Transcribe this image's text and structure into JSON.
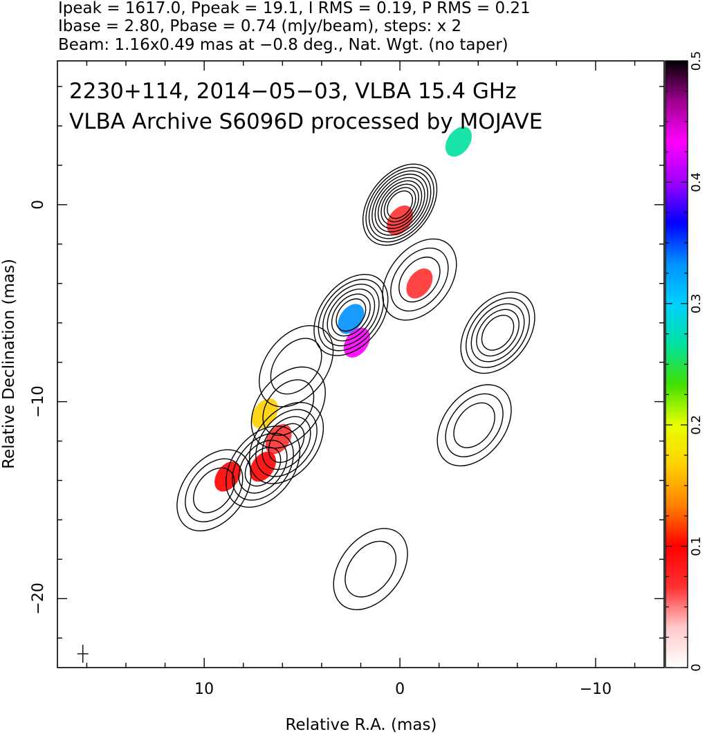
{
  "header": {
    "line1": "Ipeak = 1617.0, Ppeak = 19.1, I RMS = 0.19, P RMS = 0.21",
    "line2": "Ibase = 2.80, Pbase = 0.74 (mJy/beam), steps: x 2",
    "line3": "Beam: 1.16x0.49 mas at −0.8 deg., Nat. Wgt. (no taper)"
  },
  "overlay": {
    "line1": "2230+114, 2014−05−03, VLBA 15.4 GHz",
    "line2": "VLBA Archive S6096D processed by MOJAVE"
  },
  "chart_data": {
    "type": "heatmap",
    "title": "",
    "xlabel": "Relative R.A. (mas)",
    "ylabel": "Relative Declination (mas)",
    "xlim": [
      17.5,
      -13.5
    ],
    "ylim": [
      -23.5,
      7.3
    ],
    "x_ticks": [
      10,
      0,
      -10
    ],
    "x_tick_labels": [
      "10",
      "0",
      "−10"
    ],
    "y_ticks": [
      0,
      -10,
      -20
    ],
    "y_tick_labels": [
      "0",
      "−10",
      "−20"
    ],
    "grid": false,
    "colorbar": {
      "range": [
        0,
        0.5
      ],
      "ticks": [
        0,
        0.1,
        0.2,
        0.3,
        0.4,
        0.5
      ],
      "tick_labels": [
        "0",
        "0.1",
        "0.2",
        "0.3",
        "0.4",
        "0.5"
      ],
      "orientation": "vertical",
      "placement": "right",
      "stops": [
        "#ffffff",
        "#ffc8c8",
        "#ff3030",
        "#ff0000",
        "#ff8000",
        "#ffd000",
        "#e8ff00",
        "#40e000",
        "#00e0a0",
        "#00d0ff",
        "#0090ff",
        "#0000ff",
        "#a000ff",
        "#ff00ff",
        "#a00090",
        "#000000"
      ]
    },
    "contour_sources": [
      {
        "x": 0.0,
        "y": 0.0,
        "levels": 9
      },
      {
        "x": -1.0,
        "y": -3.8,
        "levels": 3
      },
      {
        "x": 2.5,
        "y": -5.6,
        "levels": 6
      },
      {
        "x": 5.3,
        "y": -8.2,
        "levels": 2
      },
      {
        "x": 5.7,
        "y": -10.3,
        "levels": 2
      },
      {
        "x": 5.8,
        "y": -12.1,
        "levels": 4
      },
      {
        "x": 7.0,
        "y": -13.3,
        "levels": 4
      },
      {
        "x": 9.5,
        "y": -14.5,
        "levels": 3
      },
      {
        "x": -5.0,
        "y": -6.5,
        "levels": 5
      },
      {
        "x": -3.8,
        "y": -11.2,
        "levels": 3
      },
      {
        "x": 1.5,
        "y": -18.5,
        "levels": 2
      }
    ],
    "polarization_blobs": [
      {
        "x": 0.0,
        "y": -0.8,
        "value": 0.06
      },
      {
        "x": -1.0,
        "y": -4.0,
        "value": 0.06
      },
      {
        "x": 2.5,
        "y": -5.8,
        "value": 0.32
      },
      {
        "x": 2.2,
        "y": -7.0,
        "value": 0.42
      },
      {
        "x": 6.2,
        "y": -11.9,
        "value": 0.07
      },
      {
        "x": 7.0,
        "y": -13.3,
        "value": 0.1
      },
      {
        "x": 8.8,
        "y": -13.8,
        "value": 0.1
      },
      {
        "x": 6.9,
        "y": -10.6,
        "value": 0.17
      },
      {
        "x": -3.0,
        "y": 3.2,
        "value": 0.25
      }
    ],
    "beam": {
      "major": 1.16,
      "minor": 0.49,
      "pa_deg": -0.8
    }
  }
}
